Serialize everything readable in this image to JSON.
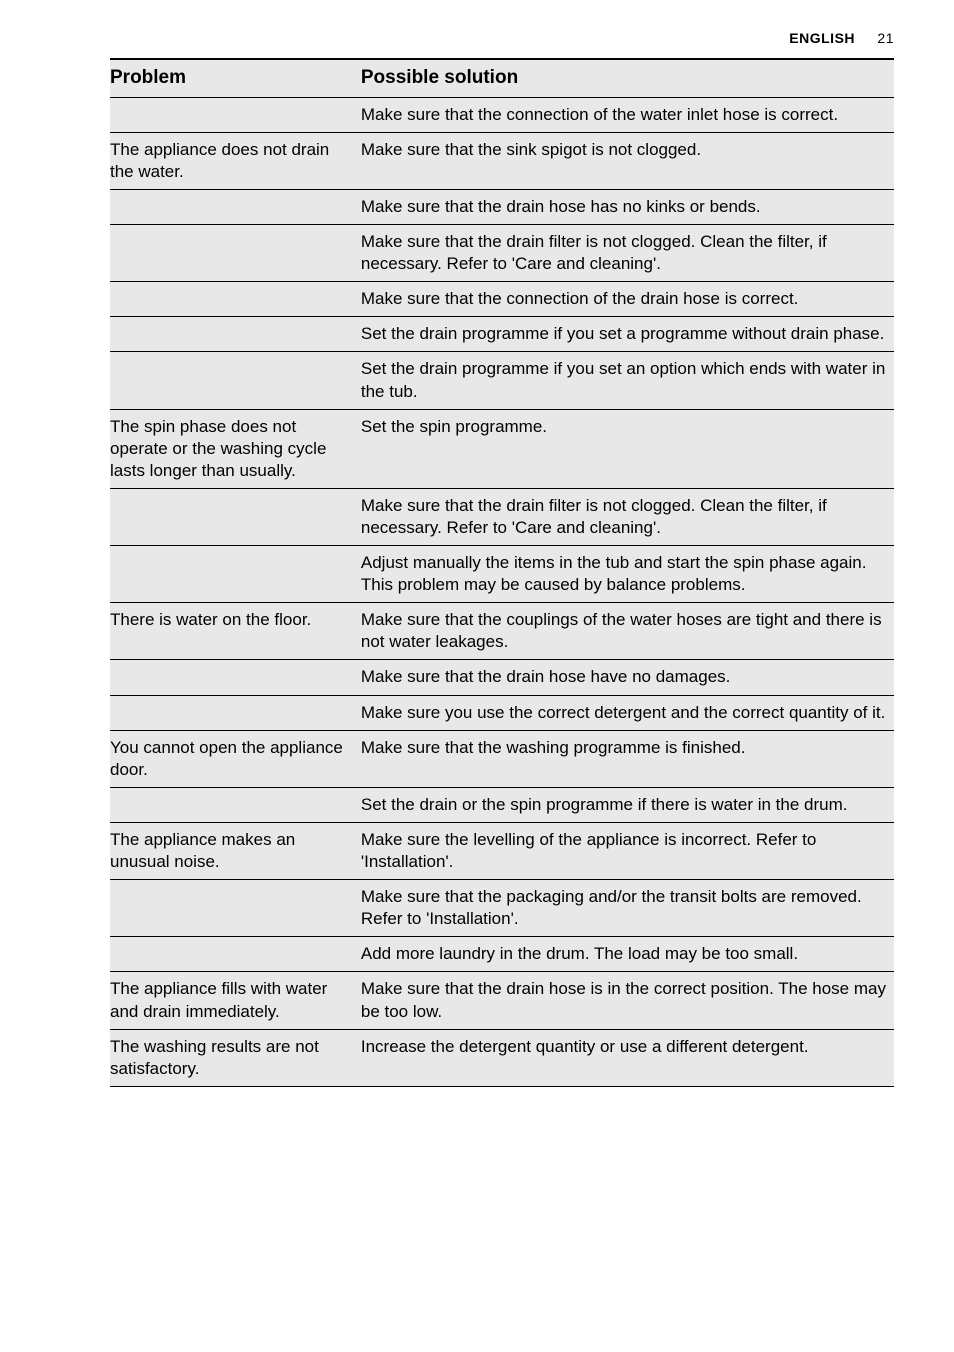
{
  "header": {
    "language": "ENGLISH",
    "page_number": "21"
  },
  "table": {
    "columns": {
      "problem": "Problem",
      "solution": "Possible solution"
    },
    "rows": [
      {
        "problem": "",
        "solution": "Make sure that the connection of the water inlet hose is correct.",
        "groupStart": false
      },
      {
        "problem": "The appliance does not drain the water.",
        "solution": "Make sure that the sink spigot is not clogged.",
        "groupStart": true
      },
      {
        "problem": "",
        "solution": "Make sure that the drain hose has no kinks or bends.",
        "groupStart": false
      },
      {
        "problem": "",
        "solution": "Make sure that the drain filter is not clogged. Clean the filter, if necessary. Refer to 'Care and cleaning'.",
        "groupStart": false
      },
      {
        "problem": "",
        "solution": "Make sure that the connection of the drain hose is correct.",
        "groupStart": false
      },
      {
        "problem": "",
        "solution": "Set the drain programme if you set a programme without drain phase.",
        "groupStart": false
      },
      {
        "problem": "",
        "solution": "Set the drain programme if you set an option which ends with water in the tub.",
        "groupStart": false
      },
      {
        "problem": "The spin phase does not operate or the washing cycle lasts longer than usually.",
        "solution": "Set the spin programme.",
        "groupStart": true
      },
      {
        "problem": "",
        "solution": "Make sure that the drain filter is not clogged. Clean the filter, if necessary. Refer to 'Care and cleaning'.",
        "groupStart": false
      },
      {
        "problem": "",
        "solution": "Adjust manually the items in the tub and start the spin phase again. This problem may be caused by balance problems.",
        "groupStart": false
      },
      {
        "problem": "There is water on the floor.",
        "solution": "Make sure that the couplings of the water hoses are tight and there is not water leakages.",
        "groupStart": true
      },
      {
        "problem": "",
        "solution": "Make sure that the drain hose have no damages.",
        "groupStart": false
      },
      {
        "problem": "",
        "solution": "Make sure you use the correct detergent and the correct quantity of it.",
        "groupStart": false
      },
      {
        "problem": "You cannot open the appliance door.",
        "solution": "Make sure that the washing programme is finished.",
        "groupStart": true
      },
      {
        "problem": "",
        "solution": "Set the drain or the spin programme if there is water in the drum.",
        "groupStart": false
      },
      {
        "problem": "The appliance makes an unusual noise.",
        "solution": "Make sure the levelling of the appliance is incorrect. Refer to 'Installation'.",
        "groupStart": true
      },
      {
        "problem": "",
        "solution": "Make sure that the packaging and/or the transit bolts are removed. Refer to 'Installation'.",
        "groupStart": false
      },
      {
        "problem": "",
        "solution": "Add more laundry in the drum. The load may be too small.",
        "groupStart": false
      },
      {
        "problem": "The appliance fills with water and drain immediately.",
        "solution": "Make sure that the drain hose is in the correct position. The hose may be too low.",
        "groupStart": true
      },
      {
        "problem": "The washing results are not satisfactory.",
        "solution": "Increase the detergent quantity or use a different detergent.",
        "groupStart": true
      }
    ]
  }
}
